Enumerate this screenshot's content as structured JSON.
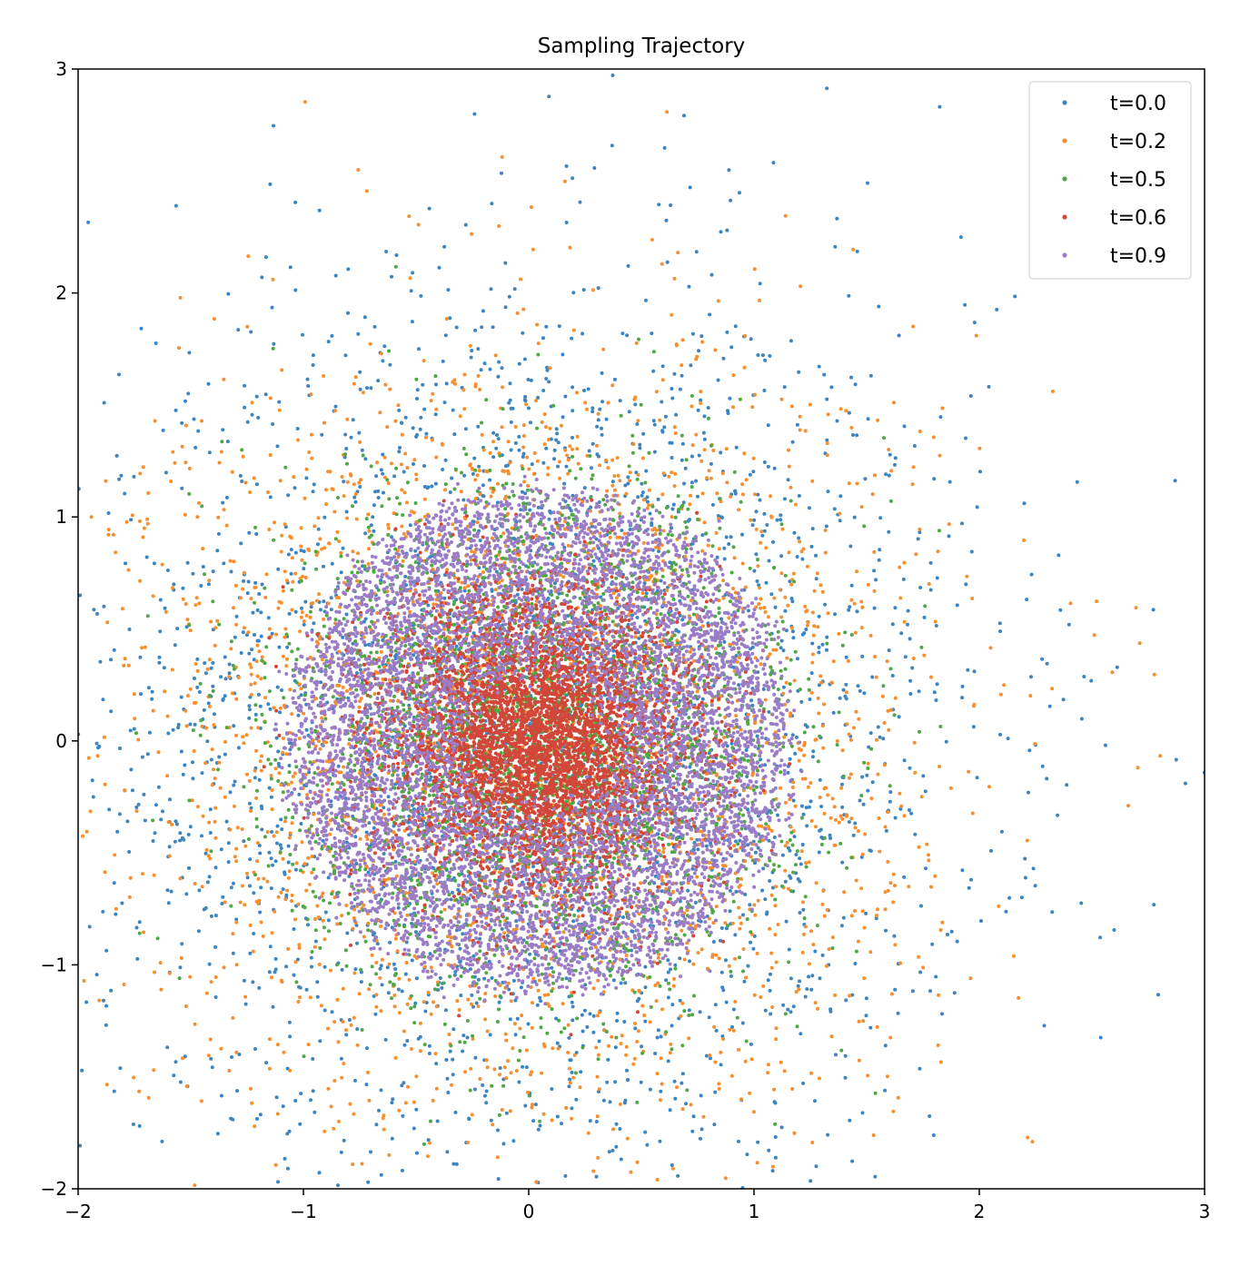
{
  "chart_data": {
    "type": "scatter",
    "title": "Sampling Trajectory",
    "xlabel": "",
    "ylabel": "",
    "xlim": [
      -2,
      3
    ],
    "ylim": [
      -2,
      3
    ],
    "xticks": [
      -2,
      -1,
      0,
      1,
      2,
      3
    ],
    "yticks": [
      -2,
      -1,
      0,
      1,
      2,
      3
    ],
    "xtick_labels": [
      "−2",
      "−1",
      "0",
      "1",
      "2",
      "3"
    ],
    "ytick_labels": [
      "−2",
      "−1",
      "0",
      "1",
      "2",
      "3"
    ],
    "grid": false,
    "legend_position": "top-right",
    "series": [
      {
        "name": "t=0.0",
        "color": "#3d85c0",
        "distribution": "gaussian",
        "center": [
          0.0,
          0.0
        ],
        "std": 1.0,
        "count": 3200
      },
      {
        "name": "t=0.2",
        "color": "#f78f2e",
        "distribution": "gaussian",
        "center": [
          0.0,
          0.0
        ],
        "std": 0.85,
        "count": 3200
      },
      {
        "name": "t=0.5",
        "color": "#4ea843",
        "distribution": "gaussian",
        "center": [
          0.05,
          0.0
        ],
        "std": 0.55,
        "count": 3000
      },
      {
        "name": "t=0.6",
        "color": "#d2473a",
        "distribution": "gaussian",
        "center": [
          0.05,
          0.0
        ],
        "std": 0.33,
        "count": 5000
      },
      {
        "name": "t=0.9",
        "color": "#9a7dc6",
        "distribution": "ring",
        "center": [
          0.05,
          0.0
        ],
        "radius": [
          0.35,
          1.1
        ],
        "count": 7000
      }
    ]
  }
}
